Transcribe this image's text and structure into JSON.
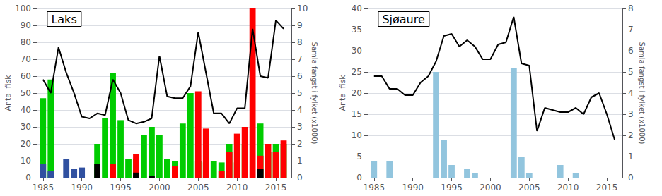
{
  "chart_data": [
    {
      "type": "bar",
      "title": "Laks",
      "stacked": true,
      "grid": true,
      "ylabel": "Antal fisk",
      "y2label": "Samla fangst i fylket (x1000)",
      "x": [
        1985,
        1986,
        1987,
        1988,
        1989,
        1990,
        1991,
        1992,
        1993,
        1994,
        1995,
        1996,
        1997,
        1998,
        1999,
        2000,
        2001,
        2002,
        2003,
        2004,
        2005,
        2006,
        2007,
        2008,
        2009,
        2010,
        2011,
        2012,
        2013,
        2014,
        2015,
        2016
      ],
      "xlim": [
        1984.2,
        2017
      ],
      "xticks": [
        1985,
        1990,
        1995,
        2000,
        2005,
        2010,
        2015
      ],
      "ylim": [
        0,
        100
      ],
      "yticks": [
        0,
        10,
        20,
        30,
        40,
        50,
        60,
        70,
        80,
        90,
        100
      ],
      "y2lim": [
        0,
        10
      ],
      "y2ticks": [
        0,
        1,
        2,
        3,
        4,
        5,
        6,
        7,
        8,
        9,
        10
      ],
      "series": [
        {
          "type": "bar",
          "color": "#00CC00",
          "values": [
            47,
            58,
            0,
            0,
            0,
            0,
            0,
            20,
            35,
            62,
            34,
            11,
            11,
            25,
            30,
            25,
            11,
            10,
            32,
            50,
            10,
            9,
            10,
            9,
            20,
            9,
            20,
            0,
            32,
            15,
            20,
            20
          ]
        },
        {
          "type": "bar",
          "color": "#FF0000",
          "values": [
            0,
            0,
            0,
            0,
            0,
            0,
            0,
            0,
            0,
            8,
            0,
            0,
            14,
            0,
            0,
            0,
            0,
            7,
            0,
            0,
            51,
            29,
            0,
            4,
            15,
            26,
            30,
            100,
            13,
            20,
            15,
            22
          ]
        },
        {
          "type": "bar",
          "color": "#000000",
          "values": [
            0,
            0,
            0,
            0,
            0,
            0,
            0,
            8,
            0,
            0,
            0,
            0,
            3,
            0,
            1,
            0,
            0,
            0,
            0,
            0,
            0,
            0,
            0,
            0,
            0,
            0,
            0,
            0,
            5,
            0,
            0,
            0
          ]
        },
        {
          "type": "bar",
          "color": "#3050A0",
          "values": [
            8,
            4,
            0,
            11,
            5,
            6,
            0,
            0,
            0,
            0,
            0,
            0,
            0,
            0,
            0,
            0,
            0,
            0,
            0,
            0,
            0,
            0,
            0,
            0,
            0,
            0,
            0,
            0,
            0,
            0,
            0,
            0
          ]
        },
        {
          "type": "line",
          "axis": "y2",
          "color": "#000000",
          "values": [
            5.8,
            5.0,
            7.7,
            6.2,
            5.0,
            3.6,
            3.5,
            3.8,
            3.7,
            5.8,
            5.0,
            3.4,
            3.2,
            3.3,
            3.5,
            7.2,
            4.8,
            4.7,
            4.7,
            5.4,
            8.6,
            6.2,
            3.8,
            3.8,
            3.2,
            4.1,
            4.1,
            8.8,
            6.0,
            5.9,
            9.3,
            8.8
          ]
        }
      ]
    },
    {
      "type": "bar",
      "title": "Sjøaure",
      "grid": true,
      "ylabel": "Antal fisk",
      "y2label": "Samla fangst i fylket (x1000)",
      "x": [
        1985,
        1986,
        1987,
        1988,
        1989,
        1990,
        1991,
        1992,
        1993,
        1994,
        1995,
        1996,
        1997,
        1998,
        1999,
        2000,
        2001,
        2002,
        2003,
        2004,
        2005,
        2006,
        2007,
        2008,
        2009,
        2010,
        2011,
        2012,
        2013,
        2014,
        2015,
        2016
      ],
      "xlim": [
        1984.2,
        2017
      ],
      "xticks": [
        1985,
        1990,
        1995,
        2000,
        2005,
        2010,
        2015
      ],
      "ylim": [
        0,
        40
      ],
      "yticks": [
        0,
        5,
        10,
        15,
        20,
        25,
        30,
        35,
        40
      ],
      "y2lim": [
        0,
        8
      ],
      "y2ticks": [
        0,
        1,
        2,
        3,
        4,
        5,
        6,
        7,
        8
      ],
      "series": [
        {
          "type": "bar",
          "color": "#92C5DE",
          "values": [
            4,
            0,
            4,
            0,
            0,
            0,
            0,
            0,
            25,
            9,
            3,
            0,
            2,
            1,
            0,
            0,
            0,
            0,
            26,
            5,
            1,
            0,
            0,
            0,
            3,
            0,
            1,
            0,
            0,
            0,
            0,
            0
          ]
        },
        {
          "type": "line",
          "axis": "y2",
          "color": "#000000",
          "values": [
            4.8,
            4.8,
            4.2,
            4.2,
            3.9,
            3.9,
            4.5,
            4.8,
            5.5,
            6.7,
            6.8,
            6.2,
            6.5,
            6.2,
            5.6,
            5.6,
            6.3,
            6.4,
            7.6,
            5.4,
            5.3,
            2.2,
            3.3,
            3.2,
            3.1,
            3.1,
            3.3,
            3.0,
            3.8,
            4.0,
            3.0,
            1.8
          ]
        }
      ]
    }
  ]
}
